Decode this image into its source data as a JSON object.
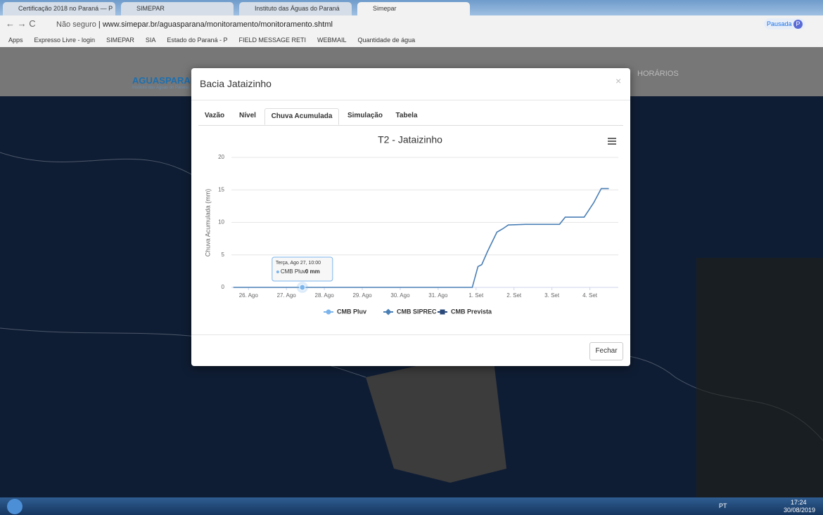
{
  "browser": {
    "tabs": [
      "Certificação 2018 no Paraná — P",
      "SIMEPAR",
      "Instituto das Águas do Paraná",
      "Simepar"
    ],
    "security": "Não seguro",
    "url": "www.simepar.br/aguasparana/monitoramento/monitoramento.shtml",
    "bookmarks": [
      "Apps",
      "Expresso Livre - login",
      "SIMEPAR",
      "SIA",
      "Estado do Paraná - P",
      "FIELD MESSAGE RETI",
      "WEBMAIL",
      "Quantidade de água"
    ],
    "profile": "Pausada",
    "profile_initial": "P"
  },
  "site": {
    "logo": "AGUASPARANÁ",
    "logo_sub": "Instituto das Águas do Paraná",
    "nav": "HORÁRIOS"
  },
  "modal": {
    "title": "Bacia Jataizinho",
    "close": "×",
    "tabs": [
      "Vazão",
      "Nível",
      "Chuva Acumulada",
      "Simulação",
      "Tabela"
    ],
    "button": "Fechar"
  },
  "chart_data": {
    "type": "line",
    "title": "T2 - Jataizinho",
    "y_label": "Chuva Acumulada (mm)",
    "x": [
      25.6,
      31.9,
      32.05,
      32.15,
      32.3,
      32.55,
      32.7,
      32.85,
      33.3,
      34.2,
      34.35,
      34.85,
      35.1,
      35.3,
      35.5
    ],
    "series": [
      {
        "name": "CMB Pluv",
        "color": "#7cb5ec",
        "marker": "circle",
        "values": [
          null,
          null,
          null,
          null,
          null,
          null,
          null,
          null,
          null,
          null,
          null,
          null,
          null,
          null,
          null
        ]
      },
      {
        "name": "CMB SIPREC",
        "color": "#4a7fb5",
        "marker": "diamond",
        "values": [
          0,
          0,
          3.2,
          3.5,
          5.5,
          8.5,
          9,
          9.6,
          9.7,
          9.7,
          10.8,
          10.8,
          13,
          15.2,
          15.2
        ]
      },
      {
        "name": "CMB Prevista",
        "color": "#2b4a7a",
        "marker": "square",
        "values": [
          null,
          null,
          null,
          null,
          null,
          null,
          null,
          null,
          null,
          null,
          null,
          null,
          null,
          null,
          null
        ]
      }
    ],
    "xlim": [
      25.55,
      35.75
    ],
    "xticks": [
      {
        "value": 26,
        "label": "26. Ago"
      },
      {
        "value": 27,
        "label": "27. Ago"
      },
      {
        "value": 28,
        "label": "28. Ago"
      },
      {
        "value": 29,
        "label": "29. Ago"
      },
      {
        "value": 30,
        "label": "30. Ago"
      },
      {
        "value": 31,
        "label": "31. Ago"
      },
      {
        "value": 32,
        "label": "1. Set"
      },
      {
        "value": 33,
        "label": "2. Set"
      },
      {
        "value": 34,
        "label": "3. Set"
      },
      {
        "value": 35,
        "label": "4. Set"
      }
    ],
    "ylim": [
      0,
      20
    ],
    "yticks": [
      0,
      5,
      10,
      15,
      20
    ],
    "grid": true,
    "tooltip": {
      "title": "Terça, Ago 27, 10:00",
      "series": "CMB Pluv:",
      "x": 27.42,
      "value": 0,
      "value_label": "0 mm"
    }
  },
  "taskbar": {
    "lang": "PT",
    "time": "17:24",
    "date": "30/08/2019"
  }
}
